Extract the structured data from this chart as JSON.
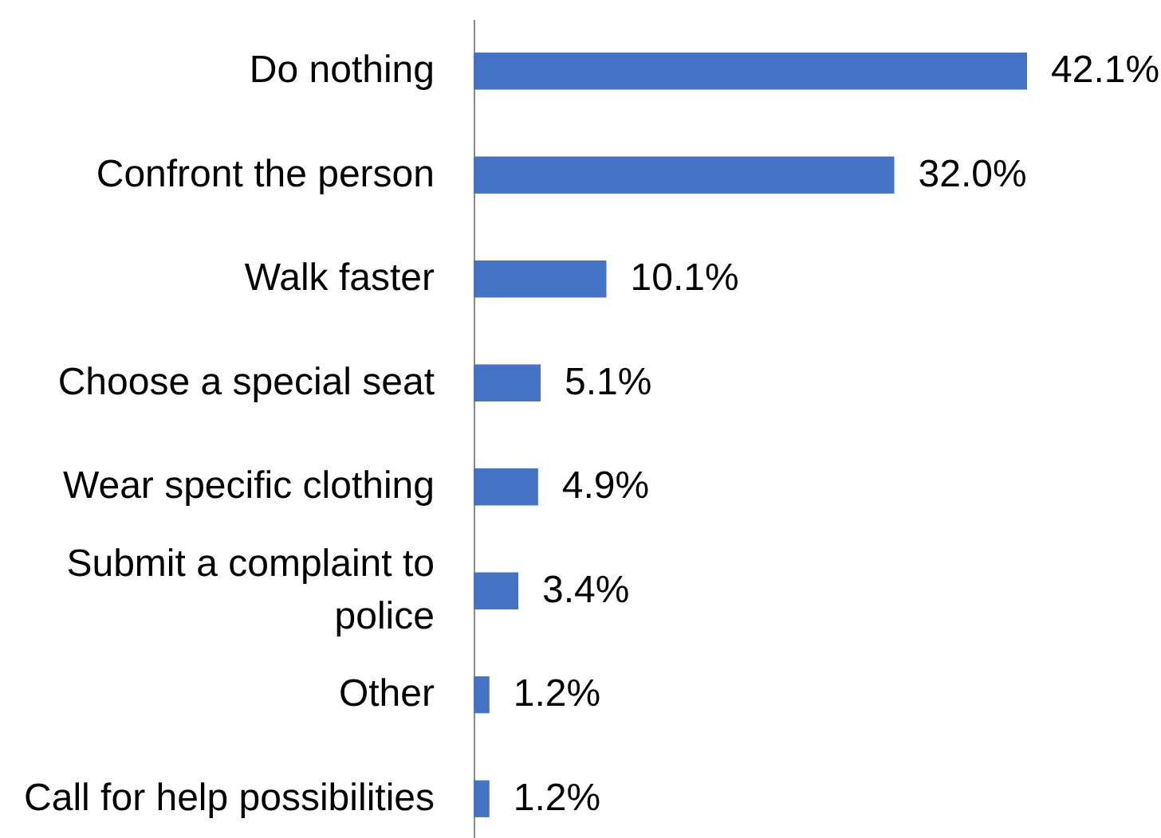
{
  "chart_data": {
    "type": "bar",
    "orientation": "horizontal",
    "categories": [
      "Do nothing",
      "Confront the person",
      "Walk faster",
      "Choose a special seat",
      "Wear specific clothing",
      "Submit a complaint to police",
      "Other",
      "Call for help possibilities"
    ],
    "values": [
      42.1,
      32.0,
      10.1,
      5.1,
      4.9,
      3.4,
      1.2,
      1.2
    ],
    "value_labels": [
      "42.1%",
      "32.0%",
      "10.1%",
      "5.1%",
      "4.9%",
      "3.4%",
      "1.2%",
      "1.2%"
    ],
    "color": "#4472c4",
    "tick_labels": "y"
  }
}
